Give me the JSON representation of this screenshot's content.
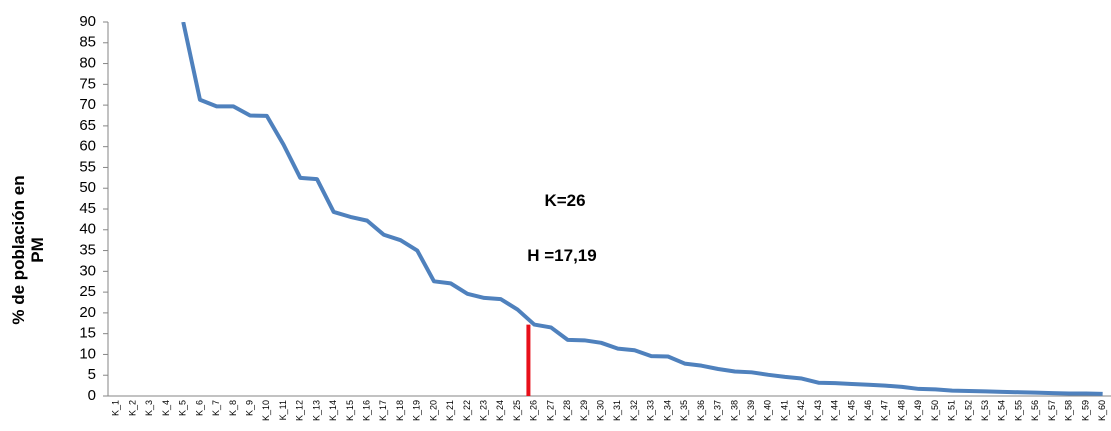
{
  "chart_data": {
    "type": "line",
    "ylabel": [
      "% de población en",
      "PM"
    ],
    "categories": [
      "K_1",
      "K_2",
      "K_3",
      "K_4",
      "K_5",
      "K_6",
      "K_7",
      "K_8",
      "K_9",
      "K_10",
      "K_11",
      "K_12",
      "K_13",
      "K_14",
      "K_15",
      "K_16",
      "K_17",
      "K_18",
      "K_19",
      "K_20",
      "K_21",
      "K_22",
      "K_23",
      "K_24",
      "K_25",
      "K_26",
      "K_27",
      "K_28",
      "K_29",
      "K_30",
      "K_31",
      "K_32",
      "K_33",
      "K_34",
      "K_35",
      "K_36",
      "K_37",
      "K_38",
      "K_39",
      "K_40",
      "K_41",
      "K_42",
      "K_43",
      "K_44",
      "K_45",
      "K_46",
      "K_47",
      "K_48",
      "K_49",
      "K_50",
      "K_51",
      "K_52",
      "K_53",
      "K_54",
      "K_55",
      "K_56",
      "K_57",
      "K_58",
      "K_59",
      "K_60"
    ],
    "series": [
      {
        "color": "#4f81bd",
        "values": [
          null,
          null,
          null,
          null,
          90,
          71.3,
          69.7,
          69.7,
          67.5,
          67.4,
          60.5,
          52.5,
          52.2,
          44.3,
          43.1,
          42.2,
          38.8,
          37.5,
          35,
          27.6,
          27.1,
          24.6,
          23.6,
          23.3,
          20.8,
          17.19,
          16.5,
          13.5,
          13.4,
          12.8,
          11.4,
          11.0,
          9.6,
          9.5,
          7.8,
          7.3,
          6.5,
          5.9,
          5.7,
          5.1,
          4.6,
          4.2,
          3.2,
          3.1,
          2.9,
          2.7,
          2.5,
          2.2,
          1.7,
          1.6,
          1.3,
          1.2,
          1.1,
          1.0,
          0.9,
          0.8,
          0.7,
          0.6,
          0.6,
          0.5
        ]
      }
    ],
    "highlight": {
      "category": "K_26",
      "value": 17.19,
      "color": "#e8101a"
    },
    "annotations": [
      "K=26",
      "H =17,19"
    ],
    "ylim": [
      0,
      90
    ],
    "yticks": [
      0,
      5,
      10,
      15,
      20,
      25,
      30,
      35,
      40,
      45,
      50,
      55,
      60,
      65,
      70,
      75,
      80,
      85,
      90
    ],
    "grid": false
  }
}
